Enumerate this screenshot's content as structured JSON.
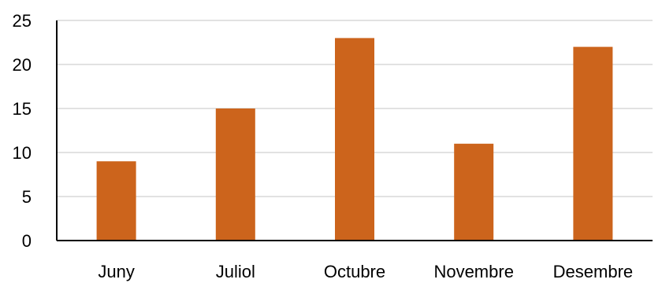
{
  "chart_data": {
    "type": "bar",
    "categories": [
      "Juny",
      "Juliol",
      "Octubre",
      "Novembre",
      "Desembre"
    ],
    "values": [
      9,
      15,
      23,
      11,
      22
    ],
    "ylim": [
      0,
      25
    ],
    "yticks": [
      0,
      5,
      10,
      15,
      20,
      25
    ],
    "grid": true,
    "legend": "none",
    "colors": {
      "bar": "#CC641C",
      "grid": "#D9D9D9",
      "axis": "#000000"
    }
  }
}
